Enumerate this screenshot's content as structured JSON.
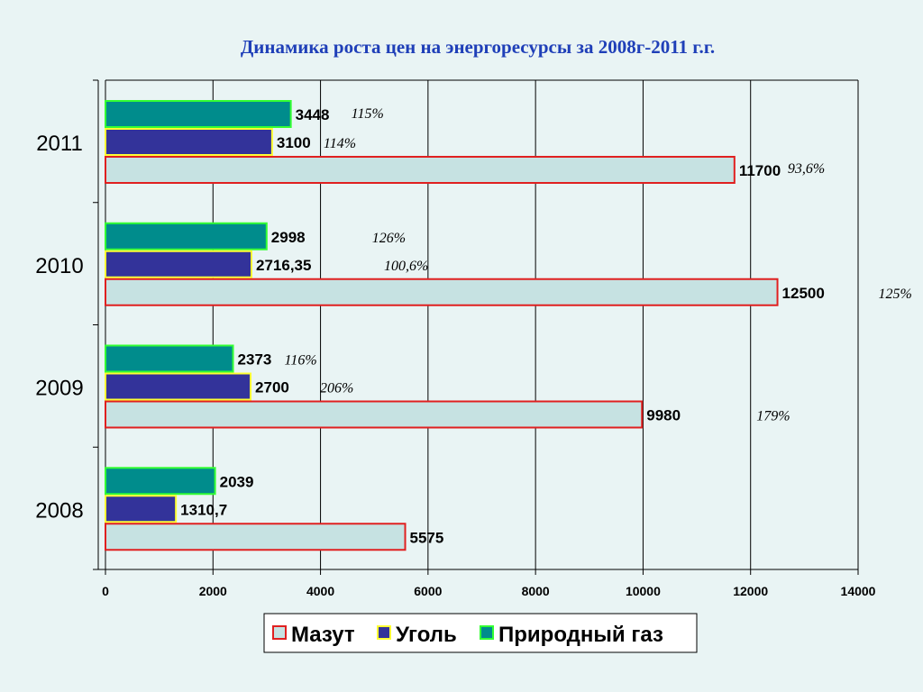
{
  "chart_data": {
    "type": "bar",
    "orientation": "horizontal",
    "title": "Динамика роста цен на энергоресурсы за 2008г-2011 г.г.",
    "categories": [
      "2008",
      "2009",
      "2010",
      "2011"
    ],
    "series": [
      {
        "name": "Мазут",
        "fill": "#c6e2e2",
        "stroke": "#e02020",
        "values": [
          5575,
          9980,
          12500,
          11700
        ],
        "labels": [
          "5575",
          "9980",
          "12500",
          "11700"
        ],
        "pct": [
          "",
          "179%",
          "125%",
          "93,6%"
        ]
      },
      {
        "name": "Уголь",
        "fill": "#33339a",
        "stroke": "#ffff33",
        "values": [
          1310.7,
          2700,
          2716.35,
          3100
        ],
        "labels": [
          "1310,7",
          "2700",
          "2716,35",
          "3100"
        ],
        "pct": [
          "",
          "206%",
          "100,6%",
          "114%"
        ]
      },
      {
        "name": "Природный газ",
        "fill": "#008c8c",
        "stroke": "#33ff33",
        "values": [
          2039,
          2373,
          2998,
          3448
        ],
        "labels": [
          "2039",
          "2373",
          "2998",
          "3448"
        ],
        "pct": [
          "",
          "116%",
          "126%",
          "115%"
        ]
      }
    ],
    "xlim": [
      0,
      14000
    ],
    "xticks": [
      "0",
      "2000",
      "4000",
      "6000",
      "8000",
      "10000",
      "12000",
      "14000"
    ],
    "grid": true,
    "legend": "bottom"
  }
}
